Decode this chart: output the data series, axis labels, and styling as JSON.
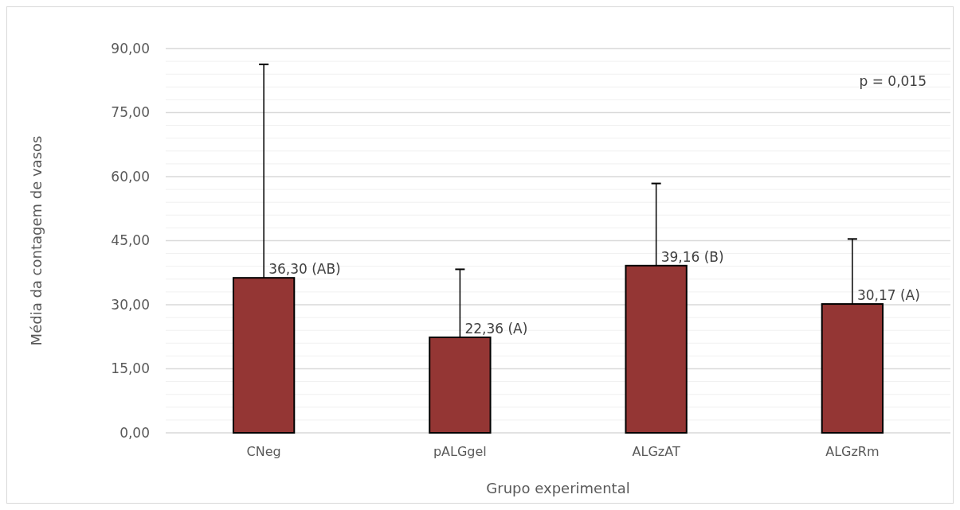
{
  "chart_data": {
    "type": "bar",
    "xlabel": "Grupo experimental",
    "ylabel": "Média da contagem de vasos",
    "categories": [
      "CNeg",
      "pALGgel",
      "ALGzAT",
      "ALGzRm"
    ],
    "values": [
      36.3,
      22.36,
      39.16,
      30.17
    ],
    "errors": [
      [
        36.3,
        86.3
      ],
      [
        22.36,
        38.3
      ],
      [
        39.16,
        58.4
      ],
      [
        30.17,
        45.4
      ]
    ],
    "value_labels": [
      "36,30 (AB)",
      "22,36 (A)",
      "39,16 (B)",
      "30,17 (A)"
    ],
    "color": "#943634",
    "ylim": [
      0,
      90
    ],
    "yticks": [
      {
        "value": 0,
        "label": "0,00"
      },
      {
        "value": 3,
        "label": null
      },
      {
        "value": 6,
        "label": null
      },
      {
        "value": 9,
        "label": null
      },
      {
        "value": 12,
        "label": null
      },
      {
        "value": 15,
        "label": "15,00"
      },
      {
        "value": 18,
        "label": null
      },
      {
        "value": 21,
        "label": null
      },
      {
        "value": 24,
        "label": null
      },
      {
        "value": 27,
        "label": null
      },
      {
        "value": 30,
        "label": "30,00"
      },
      {
        "value": 33,
        "label": null
      },
      {
        "value": 36,
        "label": null
      },
      {
        "value": 39,
        "label": null
      },
      {
        "value": 42,
        "label": null
      },
      {
        "value": 45,
        "label": "45,00"
      },
      {
        "value": 48,
        "label": null
      },
      {
        "value": 51,
        "label": null
      },
      {
        "value": 54,
        "label": null
      },
      {
        "value": 57,
        "label": null
      },
      {
        "value": 60,
        "label": "60,00"
      },
      {
        "value": 63,
        "label": null
      },
      {
        "value": 66,
        "label": null
      },
      {
        "value": 69,
        "label": null
      },
      {
        "value": 72,
        "label": null
      },
      {
        "value": 75,
        "label": "75,00"
      },
      {
        "value": 78,
        "label": null
      },
      {
        "value": 81,
        "label": null
      },
      {
        "value": 84,
        "label": null
      },
      {
        "value": 87,
        "label": null
      },
      {
        "value": 90,
        "label": "90,00"
      }
    ],
    "grid": "y",
    "annotations": [
      "p = 0,015"
    ]
  }
}
